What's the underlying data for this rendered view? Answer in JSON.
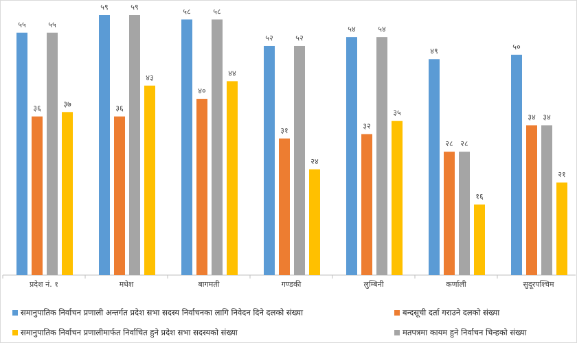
{
  "chart_data": {
    "type": "bar",
    "categories": [
      "प्रदेश नं. १",
      "मधेश",
      "बागमती",
      "गण्डकी",
      "लुम्बिनी",
      "कर्णाली",
      "सुदूरपश्चिम"
    ],
    "series": [
      {
        "name": "समानुपातिक निर्वाचन प्रणाली अन्तर्गत प्रदेश सभा सदस्य निर्वाचनका लागि निवेदन दिने दलको संख्या",
        "color": "#5b9bd5",
        "values": [
          55,
          59,
          58,
          52,
          54,
          49,
          50
        ],
        "value_labels": [
          "५५",
          "५९",
          "५८",
          "५२",
          "५४",
          "४९",
          "५०"
        ]
      },
      {
        "name": "बन्दसूची दर्ता गराउने दलको संख्या",
        "color": "#ed7d31",
        "values": [
          36,
          36,
          40,
          31,
          32,
          28,
          34
        ],
        "value_labels": [
          "३६",
          "३६",
          "४०",
          "३१",
          "३२",
          "२८",
          "३४"
        ]
      },
      {
        "name": "मतपत्रमा कायम हुने निर्वाचन चिन्हको संख्या",
        "color": "#a5a5a5",
        "values": [
          55,
          59,
          58,
          52,
          54,
          28,
          34
        ],
        "value_labels": [
          "५५",
          "५९",
          "५८",
          "५२",
          "५४",
          "२८",
          "३४"
        ]
      },
      {
        "name": "समानुपातिक निर्वाचन प्रणालीमार्फत निर्वाचित हुने प्रदेश सभा सदस्यको संख्या",
        "color": "#ffc000",
        "values": [
          37,
          43,
          44,
          24,
          35,
          16,
          21
        ],
        "value_labels": [
          "३७",
          "४३",
          "४४",
          "२४",
          "३५",
          "१६",
          "२१"
        ]
      }
    ]
  }
}
